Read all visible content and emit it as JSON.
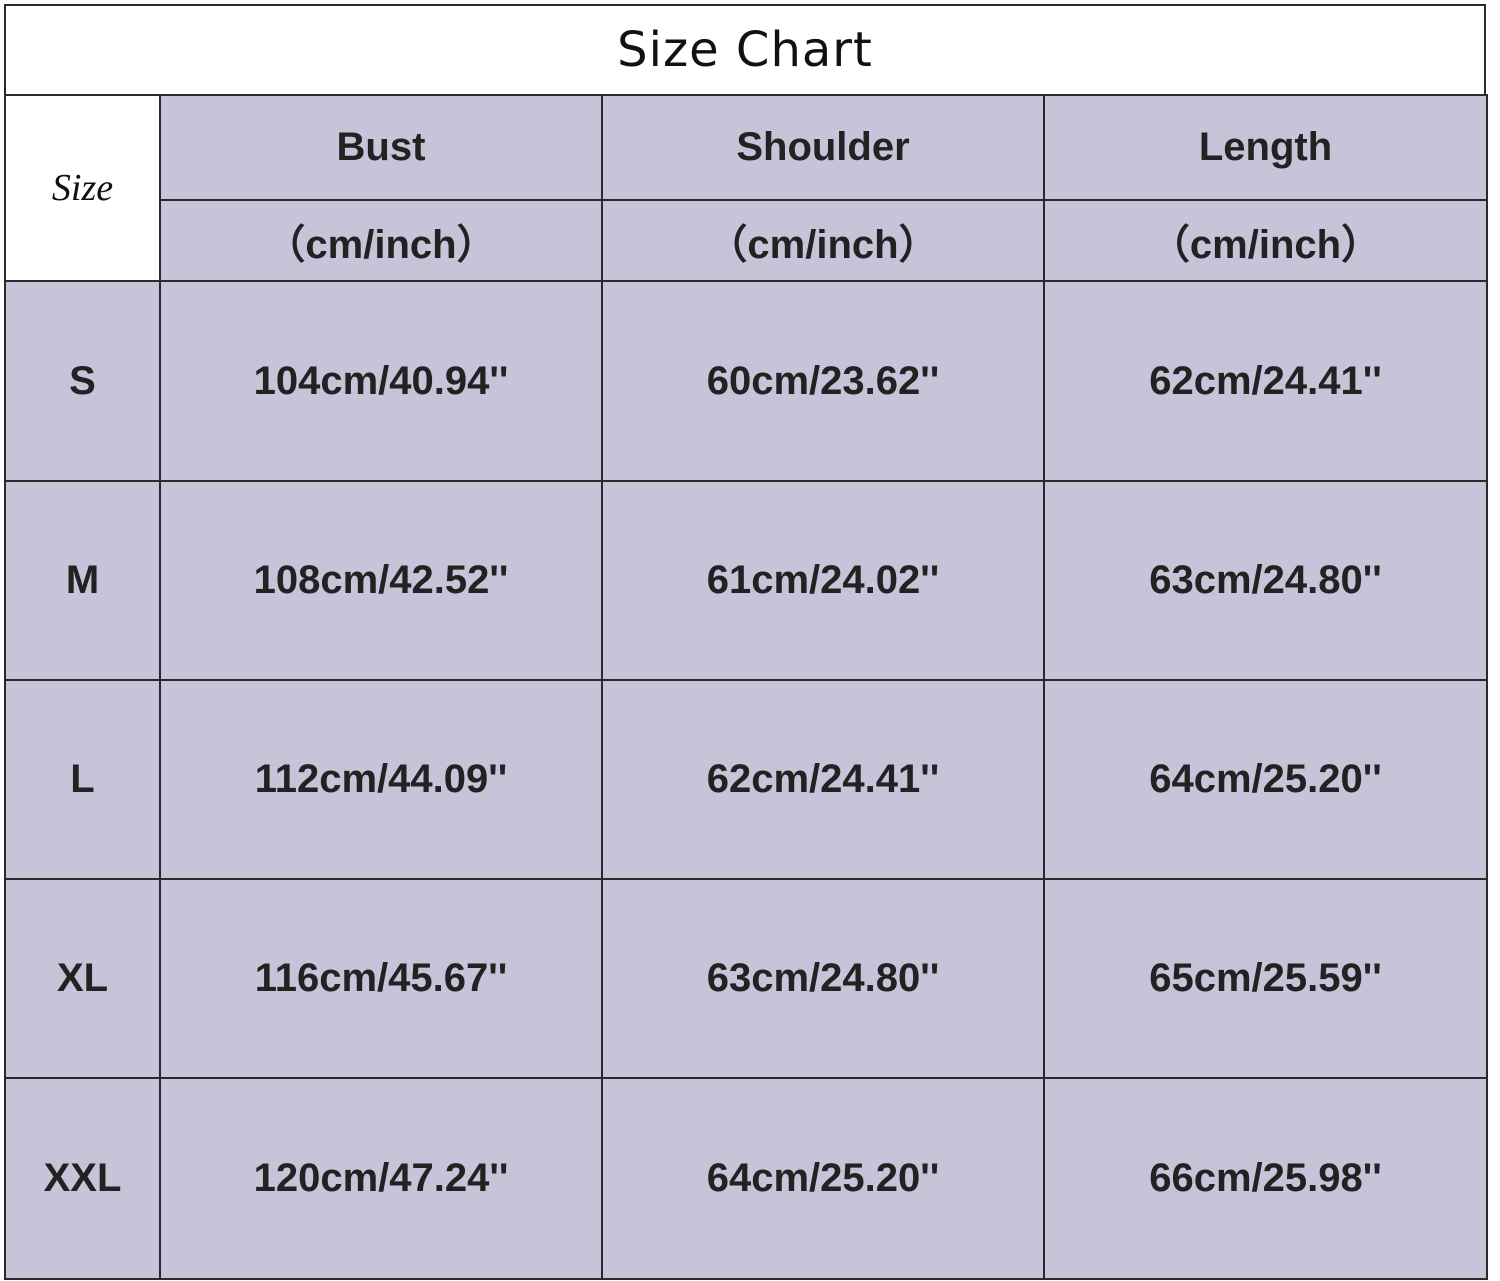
{
  "title": "Size Chart",
  "corner_label": "Size",
  "columns": [
    {
      "name": "Bust",
      "unit": "（cm/inch）"
    },
    {
      "name": "Shoulder",
      "unit": "（cm/inch）"
    },
    {
      "name": "Length",
      "unit": "（cm/inch）"
    }
  ],
  "rows": [
    {
      "size": "S",
      "values": [
        "104cm/40.94''",
        "60cm/23.62''",
        "62cm/24.41''"
      ]
    },
    {
      "size": "M",
      "values": [
        "108cm/42.52''",
        "61cm/24.02''",
        "63cm/24.80''"
      ]
    },
    {
      "size": "L",
      "values": [
        "112cm/44.09''",
        "62cm/24.41''",
        "64cm/25.20''"
      ]
    },
    {
      "size": "XL",
      "values": [
        "116cm/45.67''",
        "63cm/24.80''",
        "65cm/25.59''"
      ]
    },
    {
      "size": "XXL",
      "values": [
        "120cm/47.24''",
        "64cm/25.20''",
        "66cm/25.98''"
      ]
    }
  ],
  "colors": {
    "cell_background": "#c5c4d9",
    "border": "#2a2a2a"
  }
}
